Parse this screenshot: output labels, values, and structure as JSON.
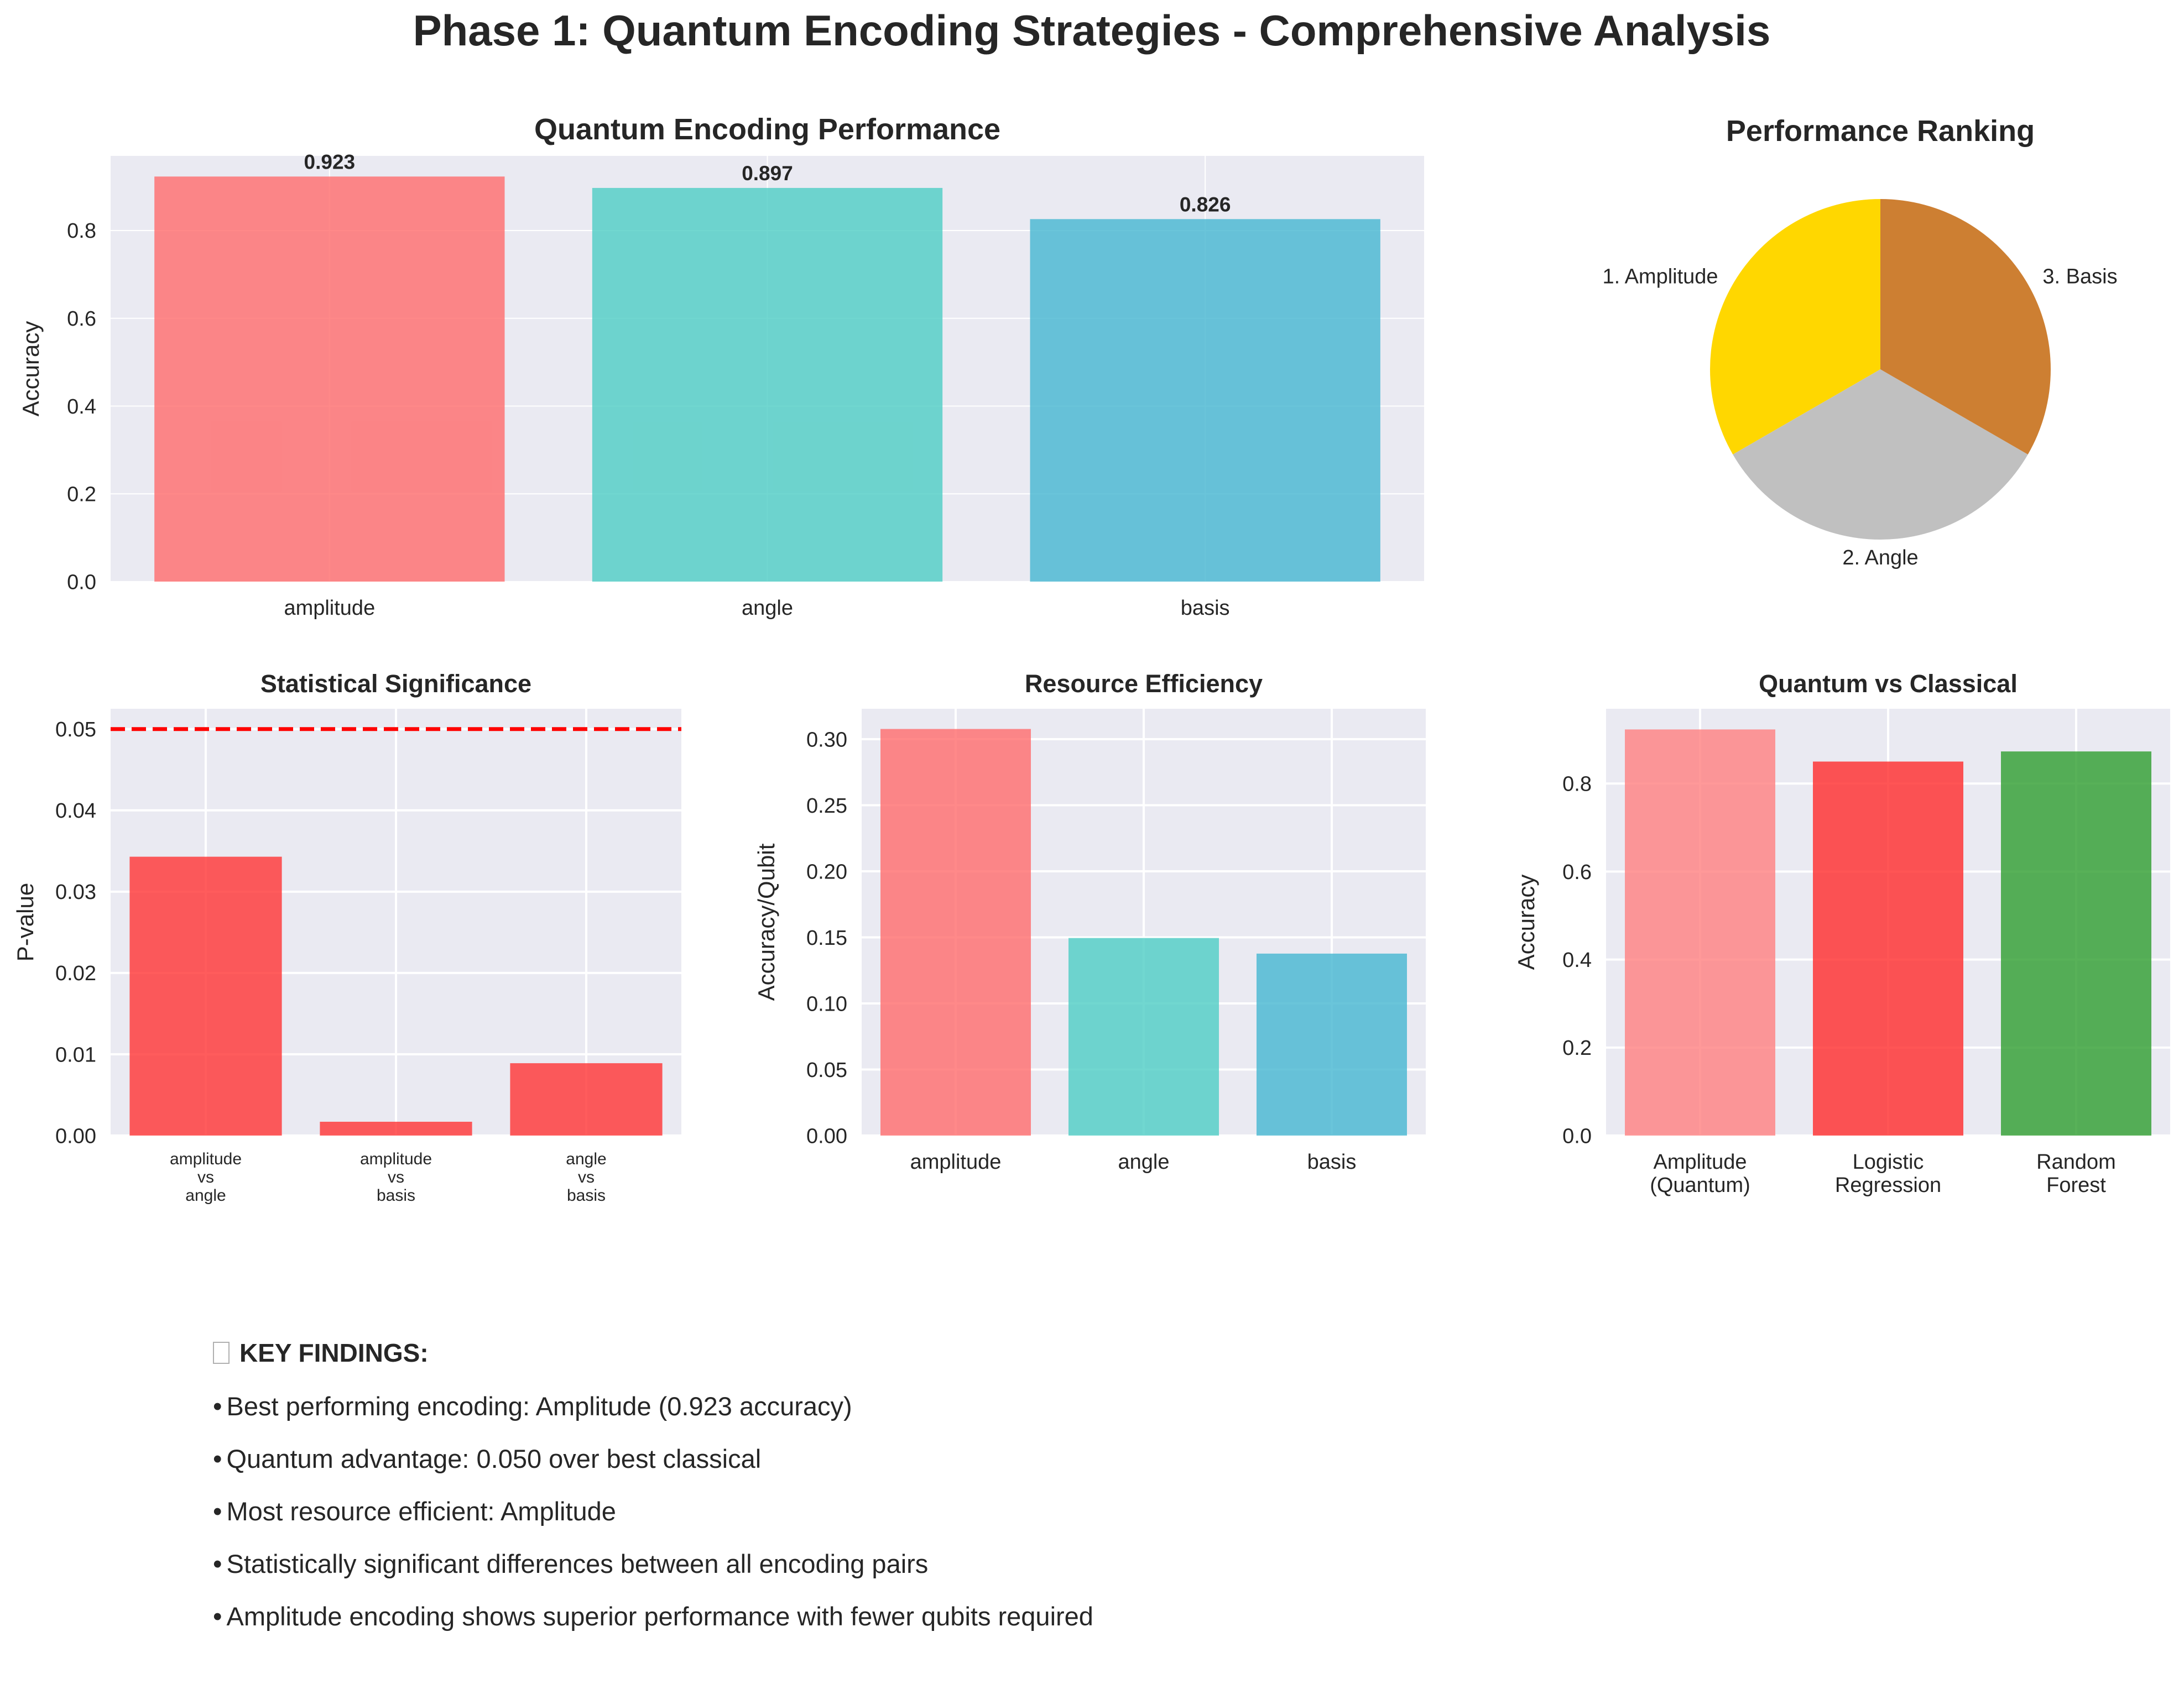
{
  "title": "Phase 1: Quantum Encoding Strategies - Comprehensive Analysis",
  "chart_data": [
    {
      "id": "performance",
      "type": "bar",
      "title": "Quantum Encoding Performance",
      "ylabel": "Accuracy",
      "xlabel": "",
      "categories": [
        "amplitude",
        "angle",
        "basis"
      ],
      "values": [
        0.923,
        0.897,
        0.826
      ],
      "data_labels": [
        "0.923",
        "0.897",
        "0.826"
      ],
      "colors": [
        "#FF6B6B",
        "#4ECDC4",
        "#45B7D1"
      ],
      "ylim": [
        0,
        0.97
      ],
      "yticks": [
        0.0,
        0.2,
        0.4,
        0.6,
        0.8
      ],
      "ytick_labels": [
        "0.0",
        "0.2",
        "0.4",
        "0.6",
        "0.8"
      ],
      "grid": true
    },
    {
      "id": "ranking",
      "type": "pie",
      "title": "Performance Ranking",
      "labels": [
        "1. Amplitude",
        "2. Angle",
        "3. Basis"
      ],
      "values": [
        1,
        1,
        1
      ],
      "colors": [
        "#FFD700",
        "#C0C0C0",
        "#CD7F32"
      ]
    },
    {
      "id": "significance",
      "type": "bar",
      "title": "Statistical Significance",
      "ylabel": "P-value",
      "xlabel": "",
      "categories": [
        "amplitude\nvs\nangle",
        "amplitude\nvs\nbasis",
        "angle\nvs\nbasis"
      ],
      "values": [
        0.0343,
        0.0017,
        0.0089
      ],
      "threshold": 0.05,
      "threshold_color": "#FF0000",
      "colors": [
        "#FF3333",
        "#FF3333",
        "#FF3333"
      ],
      "ylim": [
        0,
        0.0525
      ],
      "yticks": [
        0.0,
        0.01,
        0.02,
        0.03,
        0.04,
        0.05
      ],
      "ytick_labels": [
        "0.00",
        "0.01",
        "0.02",
        "0.03",
        "0.04",
        "0.05"
      ],
      "grid": true
    },
    {
      "id": "efficiency",
      "type": "bar",
      "title": "Resource Efficiency",
      "ylabel": "Accuracy/Qubit",
      "xlabel": "",
      "categories": [
        "amplitude",
        "angle",
        "basis"
      ],
      "values": [
        0.3077,
        0.1495,
        0.1377
      ],
      "colors": [
        "#FF6B6B",
        "#4ECDC4",
        "#45B7D1"
      ],
      "ylim": [
        0,
        0.323
      ],
      "yticks": [
        0.0,
        0.05,
        0.1,
        0.15,
        0.2,
        0.25,
        0.3
      ],
      "ytick_labels": [
        "0.00",
        "0.05",
        "0.10",
        "0.15",
        "0.20",
        "0.25",
        "0.30"
      ],
      "grid": true
    },
    {
      "id": "classical",
      "type": "bar",
      "title": "Quantum vs Classical",
      "ylabel": "Accuracy",
      "xlabel": "",
      "categories": [
        "Amplitude\n(Quantum)",
        "Logistic\nRegression",
        "Random\nForest"
      ],
      "values": [
        0.923,
        0.85,
        0.873
      ],
      "colors": [
        "#FF7F7F",
        "#FF2B2B",
        "#2E9E2E"
      ],
      "ylim": [
        0,
        0.97
      ],
      "yticks": [
        0.0,
        0.2,
        0.4,
        0.6,
        0.8
      ],
      "ytick_labels": [
        "0.0",
        "0.2",
        "0.4",
        "0.6",
        "0.8"
      ],
      "grid": true
    }
  ],
  "findings": {
    "heading": "KEY FINDINGS:",
    "items": [
      "Best performing encoding: Amplitude (0.923 accuracy)",
      "Quantum advantage: 0.050 over best classical",
      "Most resource efficient: Amplitude",
      "Statistically significant differences between all encoding pairs",
      "Amplitude encoding shows superior performance with fewer qubits required"
    ]
  }
}
